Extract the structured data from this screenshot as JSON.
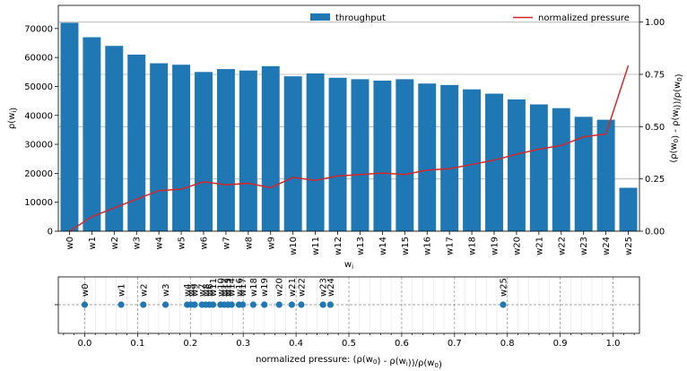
{
  "chart_data": [
    {
      "type": "bar+line",
      "categories": [
        "w0",
        "w1",
        "w2",
        "w3",
        "w4",
        "w5",
        "w6",
        "w7",
        "w8",
        "w9",
        "w10",
        "w11",
        "w12",
        "w13",
        "w14",
        "w15",
        "w16",
        "w17",
        "w18",
        "w19",
        "w20",
        "w21",
        "w22",
        "w23",
        "w24",
        "w25"
      ],
      "series": [
        {
          "name": "throughput",
          "type": "bar",
          "axis": "left",
          "color": "#1f77b4",
          "values": [
            72000,
            67000,
            64000,
            61000,
            58000,
            57500,
            55000,
            56000,
            55500,
            57000,
            53500,
            54500,
            53000,
            52500,
            52000,
            52500,
            51000,
            50500,
            49000,
            47500,
            45500,
            43800,
            42500,
            39500,
            38500,
            15000
          ]
        },
        {
          "name": "normalized pressure",
          "type": "line",
          "axis": "right",
          "color": "#d62728",
          "values": [
            0.0,
            0.069,
            0.111,
            0.153,
            0.194,
            0.201,
            0.236,
            0.222,
            0.229,
            0.208,
            0.257,
            0.243,
            0.264,
            0.271,
            0.278,
            0.271,
            0.292,
            0.299,
            0.319,
            0.34,
            0.368,
            0.392,
            0.41,
            0.451,
            0.465,
            0.792
          ]
        }
      ],
      "xlabel": "$w_i$",
      "ylabel": "$\\rho(w_i)$",
      "ylabel_right": "$(\\rho(w_0) - \\rho(w_i))/\\rho(w_0)$",
      "ylim": [
        0,
        78000
      ],
      "ylim_right": [
        0,
        1.08
      ],
      "yticks": [
        "0",
        "10000",
        "20000",
        "30000",
        "40000",
        "50000",
        "60000",
        "70000"
      ],
      "yticks_right": [
        "0.00",
        "0.25",
        "0.50",
        "0.75",
        "1.00"
      ],
      "legend": [
        "top-center",
        "top-right"
      ],
      "grid": "horizontal at right-axis ticks"
    },
    {
      "type": "scatter",
      "labels": [
        "w0",
        "w1",
        "w2",
        "w3",
        "w4",
        "w5",
        "w6",
        "w7",
        "w8",
        "w9",
        "w10",
        "w11",
        "w12",
        "w13",
        "w14",
        "w15",
        "w16",
        "w17",
        "w18",
        "w19",
        "w20",
        "w21",
        "w22",
        "w23",
        "w24",
        "w25"
      ],
      "x": [
        0.0,
        0.069,
        0.111,
        0.153,
        0.194,
        0.201,
        0.236,
        0.222,
        0.229,
        0.208,
        0.257,
        0.243,
        0.264,
        0.271,
        0.278,
        0.271,
        0.292,
        0.299,
        0.319,
        0.34,
        0.368,
        0.392,
        0.41,
        0.451,
        0.465,
        0.792
      ],
      "color": "#1f77b4",
      "xlabel": "normalized pressure: $(\\rho(w_0) - \\rho(w_i))/\\rho(w_0)$",
      "xlim": [
        -0.05,
        1.05
      ],
      "xticks": [
        "0.0",
        "0.1",
        "0.2",
        "0.3",
        "0.4",
        "0.5",
        "0.6",
        "0.7",
        "0.8",
        "0.9",
        "1.0"
      ],
      "grid": "dashed major, light minor"
    }
  ]
}
